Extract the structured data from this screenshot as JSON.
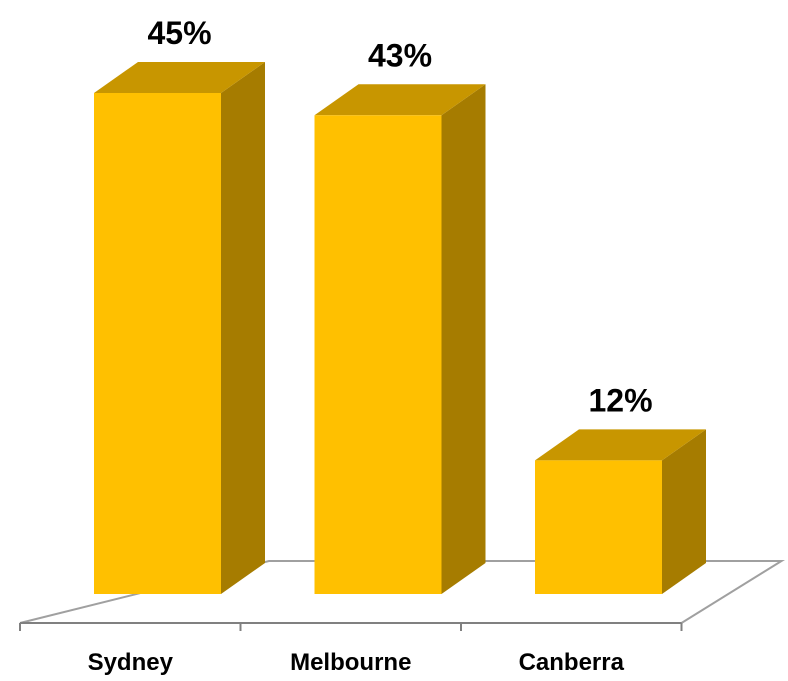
{
  "chart_data": {
    "type": "bar",
    "style": "3d-column",
    "categories": [
      "Sydney",
      "Melbourne",
      "Canberra"
    ],
    "values": [
      45,
      43,
      12
    ],
    "data_labels": [
      "45%",
      "43%",
      "12%"
    ],
    "title": "",
    "xlabel": "",
    "ylabel": "",
    "ylim": [
      0,
      45
    ],
    "grid": false,
    "legend": "none",
    "colors": {
      "bar_front": "#FFC000",
      "bar_side": "#A67C00",
      "bar_top": "#C89600",
      "floor_line": "#A0A0A0",
      "axis_line": "#808080"
    }
  }
}
